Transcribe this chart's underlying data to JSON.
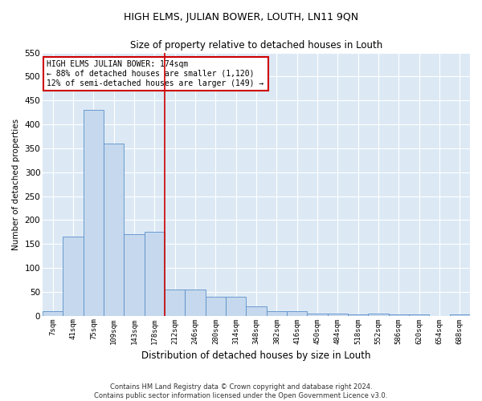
{
  "title": "HIGH ELMS, JULIAN BOWER, LOUTH, LN11 9QN",
  "subtitle": "Size of property relative to detached houses in Louth",
  "xlabel": "Distribution of detached houses by size in Louth",
  "ylabel": "Number of detached properties",
  "footer_line1": "Contains HM Land Registry data © Crown copyright and database right 2024.",
  "footer_line2": "Contains public sector information licensed under the Open Government Licence v3.0.",
  "categories": [
    "7sqm",
    "41sqm",
    "75sqm",
    "109sqm",
    "143sqm",
    "178sqm",
    "212sqm",
    "246sqm",
    "280sqm",
    "314sqm",
    "348sqm",
    "382sqm",
    "416sqm",
    "450sqm",
    "484sqm",
    "518sqm",
    "552sqm",
    "586sqm",
    "620sqm",
    "654sqm",
    "688sqm"
  ],
  "values": [
    10,
    165,
    430,
    360,
    170,
    175,
    55,
    55,
    40,
    40,
    20,
    10,
    10,
    5,
    5,
    2,
    5,
    2,
    2,
    0,
    3
  ],
  "bar_color": "#c5d8ed",
  "bar_edge_color": "#5b8fc9",
  "plot_bg_color": "#dce9f5",
  "grid_color": "#ffffff",
  "fig_bg_color": "#ffffff",
  "vline_x": 5.5,
  "vline_color": "#cc0000",
  "annotation_text": "HIGH ELMS JULIAN BOWER: 174sqm\n← 88% of detached houses are smaller (1,120)\n12% of semi-detached houses are larger (149) →",
  "annotation_box_color": "#ffffff",
  "annotation_box_edge": "#cc0000",
  "ylim": [
    0,
    550
  ],
  "yticks": [
    0,
    50,
    100,
    150,
    200,
    250,
    300,
    350,
    400,
    450,
    500,
    550
  ]
}
